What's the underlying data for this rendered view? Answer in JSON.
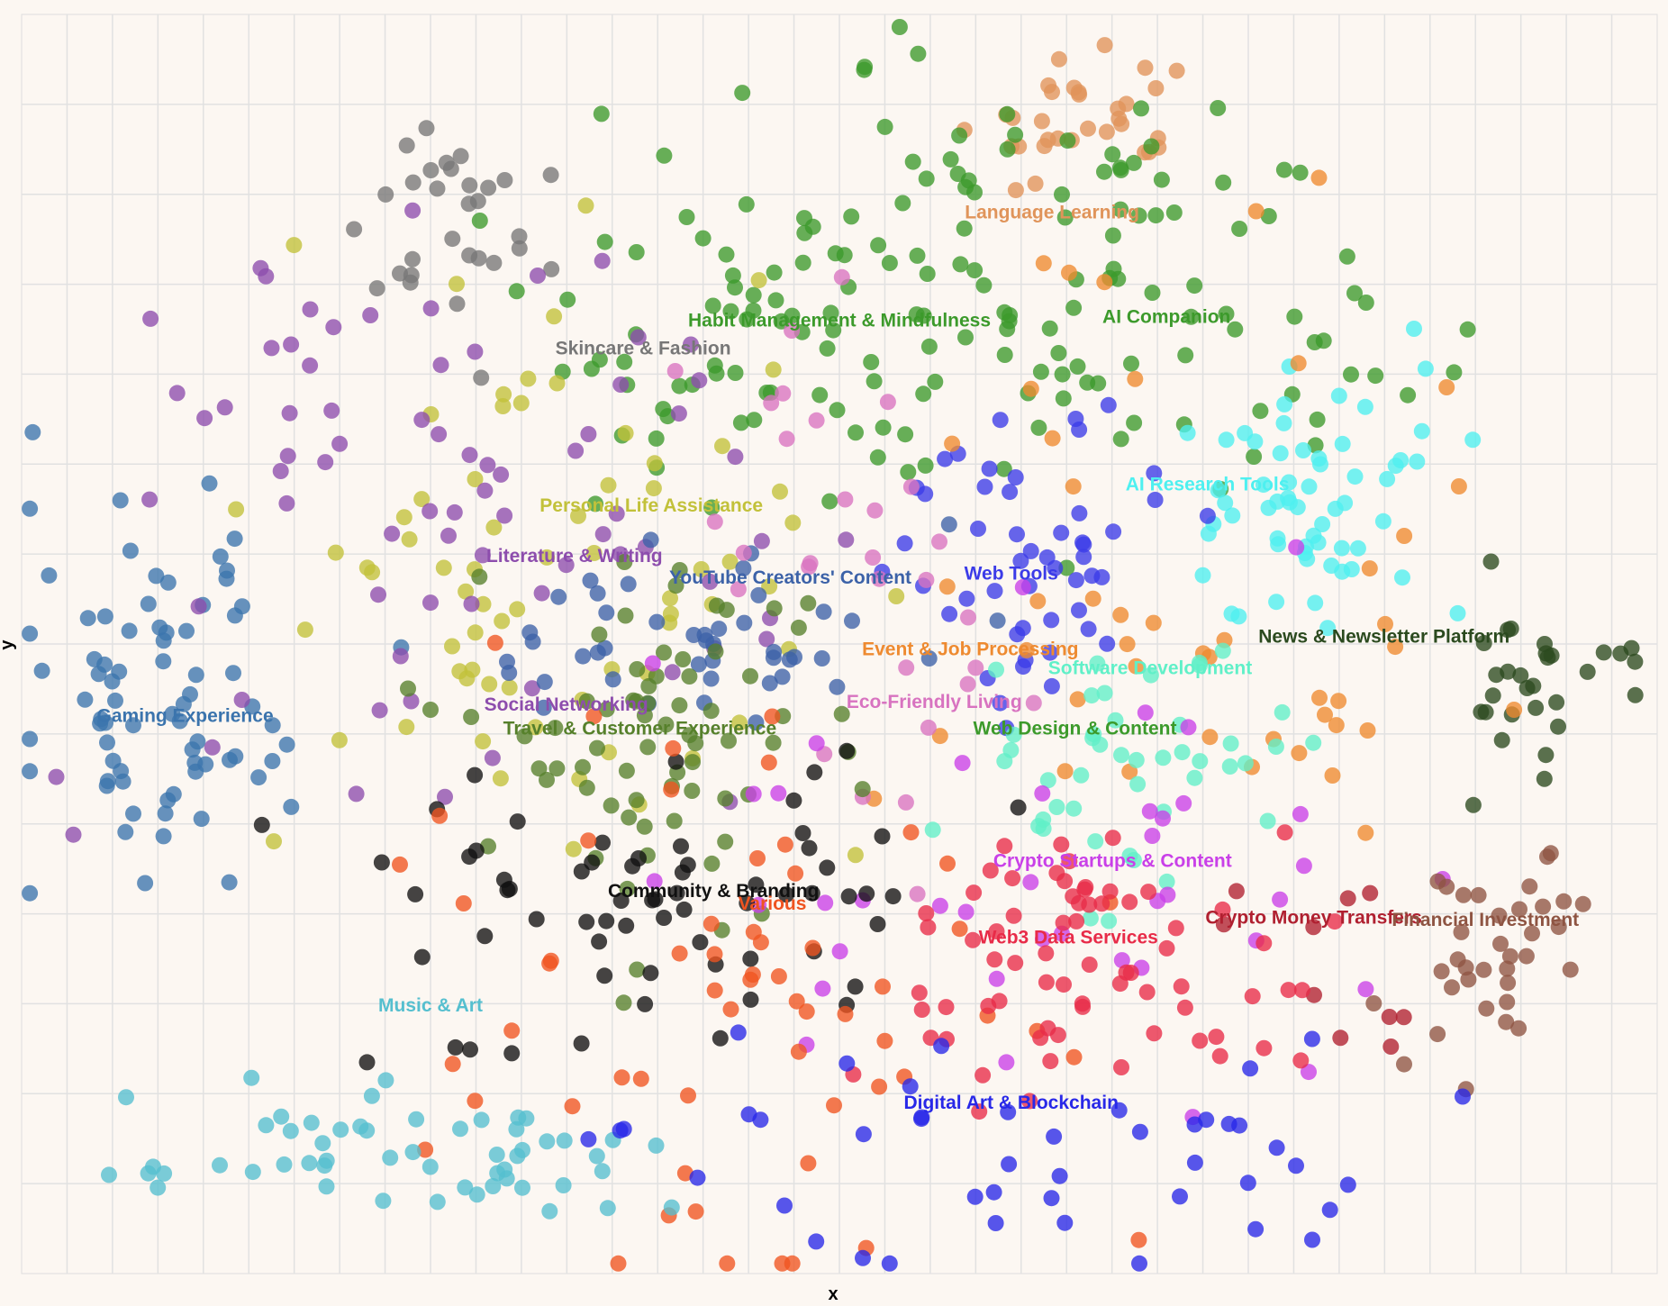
{
  "chart_data": {
    "type": "scatter",
    "xlabel": "x",
    "ylabel": "y",
    "xlim": [
      0,
      100
    ],
    "ylim": [
      0,
      100
    ],
    "grid": true,
    "series": [
      {
        "name": "Gaming Experience",
        "label": "Gaming Experience",
        "color": "#3b74ad",
        "cx": 9.5,
        "cy": 44.5,
        "sx": 5,
        "sy": 9,
        "n": 75,
        "label_pos": [
          10,
          44.2
        ]
      },
      {
        "name": "Language Learning",
        "label": "Language Learning",
        "color": "#e0945a",
        "cx": 65,
        "cy": 91,
        "sx": 3.5,
        "sy": 3,
        "n": 32,
        "label_pos": [
          63,
          84.2
        ]
      },
      {
        "name": "Habit Management & Mindfulness",
        "label": "Habit Management & Mindfulness",
        "color": "#3c9a2b",
        "cx": 58,
        "cy": 77,
        "sx": 14,
        "sy": 8,
        "n": 170,
        "label_pos": [
          50,
          75.6
        ]
      },
      {
        "name": "AI Companion",
        "label": "AI Companion",
        "color": "#3c9a2b",
        "cx": 74,
        "cy": 78,
        "sx": 6,
        "sy": 6,
        "n": 0,
        "label_pos": [
          70,
          75.9
        ]
      },
      {
        "name": "Skincare & Fashion",
        "label": "Skincare & Fashion",
        "color": "#777777",
        "cx": 27,
        "cy": 83,
        "sx": 3,
        "sy": 5,
        "n": 30,
        "label_pos": [
          38,
          73.4
        ]
      },
      {
        "name": "AI Research Tools",
        "label": "AI Research Tools",
        "color": "#4ef0f0",
        "cx": 81,
        "cy": 61,
        "sx": 5,
        "sy": 5,
        "n": 60,
        "label_pos": [
          72.5,
          62.6
        ]
      },
      {
        "name": "Personal Life Assistance",
        "label": "Personal Life Assistance",
        "color": "#c2c13a",
        "cx": 32,
        "cy": 59,
        "sx": 9,
        "sy": 11,
        "n": 70,
        "label_pos": [
          38.5,
          60.9
        ]
      },
      {
        "name": "Literature & Writing",
        "label": "Literature & Writing",
        "color": "#8d4dad",
        "cx": 26,
        "cy": 60,
        "sx": 10,
        "sy": 12,
        "n": 75,
        "label_pos": [
          33.8,
          56.9
        ]
      },
      {
        "name": "YouTube Creators' Content",
        "label": "YouTube Creators' Content",
        "color": "#3c62a8",
        "cx": 43,
        "cy": 50,
        "sx": 8,
        "sy": 4,
        "n": 45,
        "label_pos": [
          47,
          55.2
        ]
      },
      {
        "name": "Web Tools",
        "label": "Web Tools",
        "color": "#3b3be8",
        "cx": 61,
        "cy": 56,
        "sx": 5,
        "sy": 7,
        "n": 50,
        "label_pos": [
          60.5,
          55.5
        ]
      },
      {
        "name": "News & Newsletter Platform",
        "label": "News & Newsletter Platform",
        "color": "#2b4a1f",
        "cx": 93,
        "cy": 47,
        "sx": 3,
        "sy": 4,
        "n": 30,
        "label_pos": [
          83.3,
          50.5
        ]
      },
      {
        "name": "Event & Job Processing",
        "label": "Event & Job Processing",
        "color": "#ee8a30",
        "cx": 69,
        "cy": 57,
        "sx": 10,
        "sy": 13,
        "n": 45,
        "label_pos": [
          58,
          49.5
        ]
      },
      {
        "name": "Software Development",
        "label": "Software Development",
        "color": "#60f0c8",
        "cx": 68,
        "cy": 41,
        "sx": 5,
        "sy": 5,
        "n": 45,
        "label_pos": [
          69,
          48
        ]
      },
      {
        "name": "Social Networking",
        "label": "Social Networking",
        "color": "#8d4dad",
        "cx": 33,
        "cy": 45,
        "sx": 5,
        "sy": 6,
        "n": 0,
        "label_pos": [
          33.3,
          45.1
        ]
      },
      {
        "name": "Eco-Friendly Living",
        "label": "Eco-Friendly Living",
        "color": "#d873c0",
        "cx": 50,
        "cy": 57,
        "sx": 6,
        "sy": 10,
        "n": 30,
        "label_pos": [
          55.8,
          45.3
        ]
      },
      {
        "name": "Travel & Customer Experience",
        "label": "Travel & Customer Experience",
        "color": "#56802b",
        "cx": 38,
        "cy": 42,
        "sx": 6,
        "sy": 7,
        "n": 70,
        "label_pos": [
          37.8,
          43.2
        ]
      },
      {
        "name": "Web Design & Content",
        "label": "Web Design & Content",
        "color": "#3c9a2b",
        "cx": 67,
        "cy": 38,
        "sx": 6,
        "sy": 5,
        "n": 0,
        "label_pos": [
          64.4,
          43.2
        ]
      },
      {
        "name": "Crypto Startups & Content",
        "label": "Crypto Startups & Content",
        "color": "#c940e8",
        "cx": 62,
        "cy": 33,
        "sx": 13,
        "sy": 10,
        "n": 40,
        "label_pos": [
          66.7,
          32.7
        ]
      },
      {
        "name": "Community & Branding",
        "label": "Community & Branding",
        "color": "#111111",
        "cx": 38,
        "cy": 28,
        "sx": 10,
        "sy": 6,
        "n": 65,
        "label_pos": [
          42.3,
          30.3
        ]
      },
      {
        "name": "Various",
        "label": "Various",
        "color": "#ef5420",
        "cx": 45,
        "cy": 20,
        "sx": 12,
        "sy": 12,
        "n": 60,
        "label_pos": [
          45.9,
          29.3
        ]
      },
      {
        "name": "Crypto Money Transfers",
        "label": "Crypto Money Transfers",
        "color": "#b02030",
        "cx": 80,
        "cy": 26,
        "sx": 4,
        "sy": 6,
        "n": 10,
        "label_pos": [
          79,
          28.2
        ]
      },
      {
        "name": "Financial Investment",
        "label": "Financial Investment",
        "color": "#8e5442",
        "cx": 89,
        "cy": 25,
        "sx": 4,
        "sy": 4,
        "n": 35,
        "label_pos": [
          89.5,
          28
        ]
      },
      {
        "name": "Web3 Data Services",
        "label": "Web3 Data Services",
        "color": "#e82b48",
        "cx": 66,
        "cy": 25,
        "sx": 7,
        "sy": 5,
        "n": 70,
        "label_pos": [
          64,
          26.6
        ]
      },
      {
        "name": "Music & Art",
        "label": "Music & Art",
        "color": "#55bfcf",
        "cx": 22,
        "cy": 9,
        "sx": 9,
        "sy": 3,
        "n": 55,
        "label_pos": [
          25,
          21.2
        ]
      },
      {
        "name": "Digital Art & Blockchain",
        "label": "Digital Art & Blockchain",
        "color": "#2828e8",
        "cx": 59,
        "cy": 10,
        "sx": 12,
        "sy": 5,
        "n": 45,
        "label_pos": [
          60.5,
          13.5
        ]
      }
    ]
  }
}
